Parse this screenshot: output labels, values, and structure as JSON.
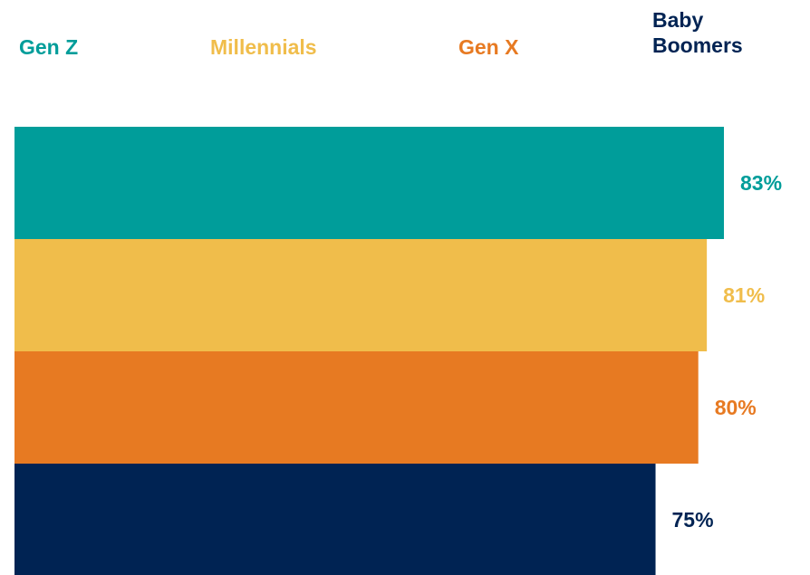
{
  "chart_data": {
    "type": "bar",
    "orientation": "horizontal",
    "categories": [
      "Gen Z",
      "Millennials",
      "Gen X",
      "Baby Boomers"
    ],
    "values": [
      83,
      81,
      80,
      75
    ],
    "data_labels": [
      "83%",
      "81%",
      "80%",
      "75%"
    ],
    "colors": [
      "#009d9a",
      "#f0bd4b",
      "#e77a22",
      "#002353"
    ],
    "legend": [
      {
        "label_lines": [
          "Gen Z"
        ],
        "color": "#009d9a"
      },
      {
        "label_lines": [
          "Millennials"
        ],
        "color": "#f0bd4b"
      },
      {
        "label_lines": [
          "Gen X"
        ],
        "color": "#e77a22"
      },
      {
        "label_lines": [
          "Baby",
          "Boomers"
        ],
        "color": "#002353"
      }
    ],
    "legend_placement": "top",
    "grid": false,
    "axes_visible": false,
    "title": "",
    "xlabel": "",
    "ylabel": ""
  }
}
